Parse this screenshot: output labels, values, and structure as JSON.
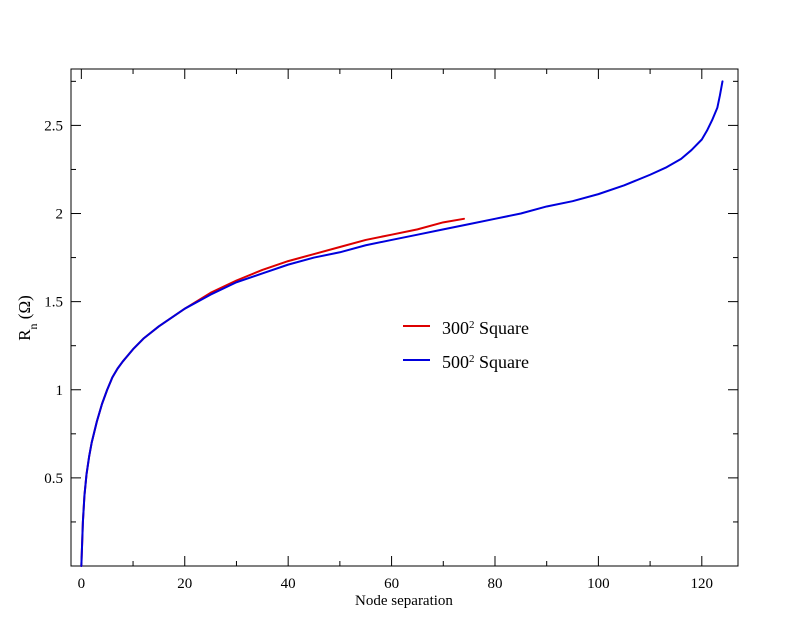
{
  "chart_data": {
    "type": "line",
    "title": "",
    "xlabel": "Node separation",
    "ylabel": {
      "main": "R",
      "sub": "n",
      "unit": " (Ω)"
    },
    "xlim": [
      -2,
      127
    ],
    "ylim": [
      0.0,
      2.82
    ],
    "x_ticks": [
      0,
      20,
      40,
      60,
      80,
      100,
      120
    ],
    "x_tick_labels": [
      "0",
      "20",
      "40",
      "60",
      "80",
      "100",
      "120"
    ],
    "y_ticks": [
      0.5,
      1.0,
      1.5,
      2.0,
      2.5
    ],
    "y_tick_labels": [
      "0.5",
      "1",
      "1.5",
      "2",
      "2.5"
    ],
    "grid": false,
    "legend": {
      "placement": "center-right",
      "entries": [
        {
          "base": "300",
          "sup": "2",
          "rest": " Square"
        },
        {
          "base": "500",
          "sup": "2",
          "rest": " Square"
        }
      ]
    },
    "colors": {
      "series_300": "#dd0000",
      "series_500": "#0000dd",
      "axis": "#000000"
    },
    "series": [
      {
        "name": "300² Square",
        "x": [
          0,
          0.3,
          0.6,
          1,
          1.5,
          2,
          3,
          4,
          5,
          6,
          7,
          8,
          10,
          12,
          15,
          20,
          25,
          30,
          35,
          40,
          45,
          50,
          55,
          60,
          65,
          70,
          74
        ],
        "y": [
          0.0,
          0.25,
          0.4,
          0.52,
          0.62,
          0.7,
          0.82,
          0.92,
          1.0,
          1.07,
          1.12,
          1.16,
          1.23,
          1.29,
          1.36,
          1.46,
          1.55,
          1.62,
          1.68,
          1.73,
          1.77,
          1.81,
          1.85,
          1.88,
          1.91,
          1.95,
          1.97
        ]
      },
      {
        "name": "500² Square",
        "x": [
          0,
          0.3,
          0.6,
          1,
          1.5,
          2,
          3,
          4,
          5,
          6,
          7,
          8,
          10,
          12,
          15,
          20,
          25,
          30,
          35,
          40,
          45,
          50,
          55,
          60,
          65,
          70,
          75,
          80,
          85,
          90,
          95,
          100,
          105,
          110,
          113,
          116,
          118,
          120,
          121,
          122,
          123,
          123.5,
          124
        ],
        "y": [
          0.0,
          0.25,
          0.4,
          0.52,
          0.62,
          0.7,
          0.82,
          0.92,
          1.0,
          1.07,
          1.12,
          1.16,
          1.23,
          1.29,
          1.36,
          1.46,
          1.54,
          1.61,
          1.66,
          1.71,
          1.75,
          1.78,
          1.82,
          1.85,
          1.88,
          1.91,
          1.94,
          1.97,
          2.0,
          2.04,
          2.07,
          2.11,
          2.16,
          2.22,
          2.26,
          2.31,
          2.36,
          2.42,
          2.47,
          2.53,
          2.6,
          2.67,
          2.75
        ]
      }
    ]
  }
}
